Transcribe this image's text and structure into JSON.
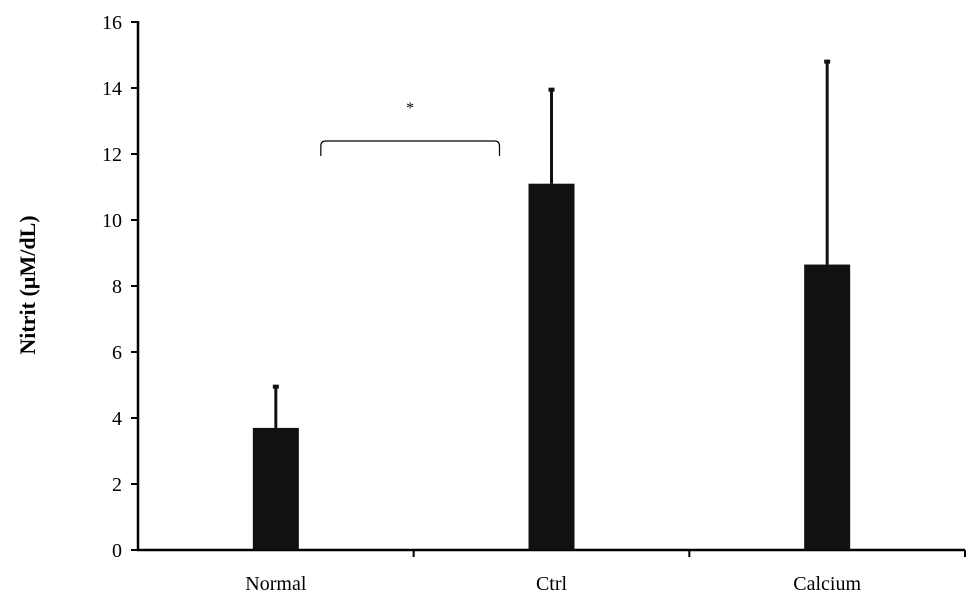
{
  "chart_data": {
    "type": "bar",
    "title": "",
    "xlabel": "",
    "ylabel": "Nitrit (µM/dL)",
    "categories": [
      "Normal",
      "Ctrl",
      "Calcium"
    ],
    "values": [
      3.7,
      11.1,
      8.65
    ],
    "error_upper": [
      4.95,
      13.95,
      14.8
    ],
    "ylim": [
      0,
      16
    ],
    "yticks": [
      "0",
      "2",
      "4",
      "6",
      "8",
      "10",
      "12",
      "14",
      "16"
    ],
    "grid": false,
    "legend": "none",
    "bar_color": "#111111",
    "annotations": [
      {
        "text": "*",
        "type": "bracket",
        "from": "Normal",
        "to": "Ctrl"
      }
    ]
  }
}
